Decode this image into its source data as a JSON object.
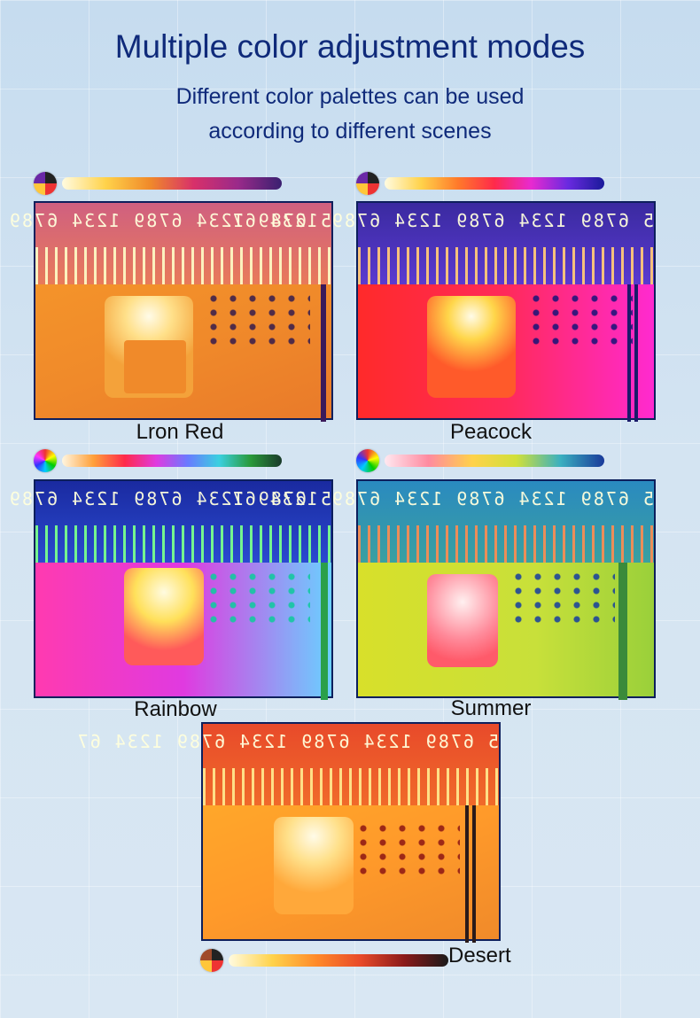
{
  "header": {
    "title": "Multiple color adjustment modes",
    "subtitle_line1": "Different color palettes can be used",
    "subtitle_line2": "according to different scenes"
  },
  "ruler_text": "5 6789 1234 6789 1234 6789 1234 67",
  "modes": [
    {
      "label": "Lron Red"
    },
    {
      "label": "Peacock"
    },
    {
      "label": "Rainbow"
    },
    {
      "label": "Summer"
    },
    {
      "label": "Desert"
    }
  ]
}
